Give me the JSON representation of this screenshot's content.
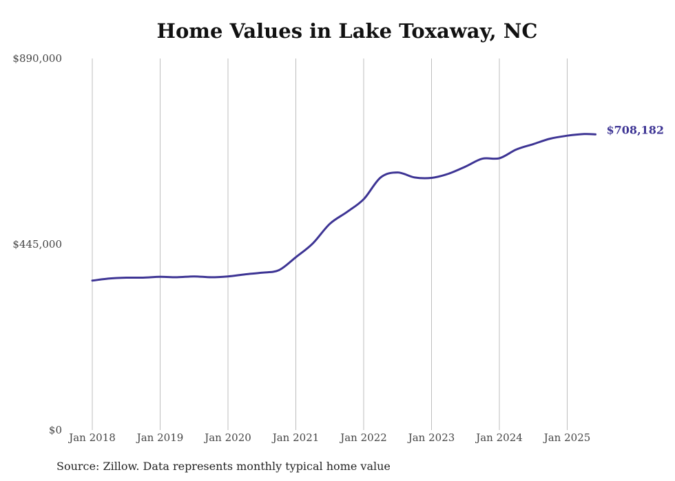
{
  "chart_data": {
    "type": "line",
    "title": "Home Values in Lake Toxaway, NC",
    "xlabel": "",
    "ylabel": "",
    "ylim": [
      0,
      890000
    ],
    "yticks": [
      0,
      445000,
      890000
    ],
    "ytick_labels": [
      "$0",
      "$445,000",
      "$890,000"
    ],
    "xticks": [
      "Jan 2018",
      "Jan 2019",
      "Jan 2020",
      "Jan 2021",
      "Jan 2022",
      "Jan 2023",
      "Jan 2024",
      "Jan 2025"
    ],
    "grid": "vertical",
    "series": [
      {
        "color": "#3d3494",
        "end_label": "$708,182",
        "points": [
          [
            "2018-01",
            358000
          ],
          [
            "2018-04",
            363000
          ],
          [
            "2018-07",
            365000
          ],
          [
            "2018-10",
            365000
          ],
          [
            "2019-01",
            367000
          ],
          [
            "2019-04",
            366000
          ],
          [
            "2019-07",
            368000
          ],
          [
            "2019-10",
            366000
          ],
          [
            "2020-01",
            368000
          ],
          [
            "2020-04",
            373000
          ],
          [
            "2020-07",
            377000
          ],
          [
            "2020-10",
            383000
          ],
          [
            "2021-01",
            414000
          ],
          [
            "2021-04",
            447000
          ],
          [
            "2021-07",
            494000
          ],
          [
            "2021-10",
            522000
          ],
          [
            "2022-01",
            553000
          ],
          [
            "2022-04",
            605000
          ],
          [
            "2022-07",
            617000
          ],
          [
            "2022-10",
            605000
          ],
          [
            "2023-01",
            604000
          ],
          [
            "2023-04",
            614000
          ],
          [
            "2023-07",
            631000
          ],
          [
            "2023-10",
            650000
          ],
          [
            "2024-01",
            651000
          ],
          [
            "2024-04",
            672000
          ],
          [
            "2024-07",
            685000
          ],
          [
            "2024-10",
            698000
          ],
          [
            "2025-01",
            705000
          ],
          [
            "2025-04",
            709000
          ],
          [
            "2025-06",
            708182
          ]
        ]
      }
    ]
  },
  "source_note": "Source: Zillow. Data represents monthly typical home value"
}
